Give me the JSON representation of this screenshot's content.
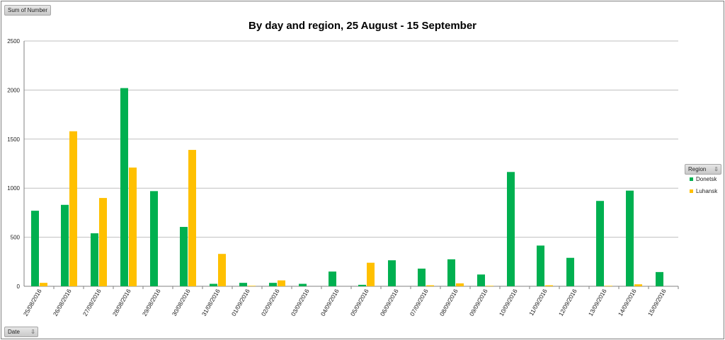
{
  "buttons": {
    "values_field": "Sum of Number",
    "axis_field": "Date",
    "legend_field": "Region",
    "filter_icon": "filter-dropdown-icon"
  },
  "colors": {
    "Donetsk": "#00b050",
    "Luhansk": "#ffc000",
    "grid": "#bfbfbf",
    "axis": "#808080"
  },
  "chart_data": {
    "type": "bar",
    "title": "By day and region, 25 August - 15 September",
    "xlabel": "",
    "ylabel": "",
    "ylim": [
      0,
      2500
    ],
    "yticks": [
      0,
      500,
      1000,
      1500,
      2000,
      2500
    ],
    "grid": true,
    "legend_position": "right",
    "categories": [
      "25/08/2016",
      "26/08/2016",
      "27/08/2016",
      "28/08/2016",
      "29/08/2016",
      "30/08/2016",
      "31/08/2016",
      "01/09/2016",
      "02/09/2016",
      "03/09/2016",
      "04/09/2016",
      "05/09/2016",
      "06/09/2016",
      "07/09/2016",
      "08/09/2016",
      "09/09/2016",
      "10/09/2016",
      "11/09/2016",
      "12/09/2016",
      "13/09/2016",
      "14/09/2016",
      "15/09/2016"
    ],
    "series": [
      {
        "name": "Donetsk",
        "values": [
          770,
          830,
          540,
          2020,
          970,
          605,
          25,
          35,
          35,
          25,
          150,
          15,
          265,
          180,
          275,
          120,
          1165,
          415,
          290,
          870,
          975,
          145
        ]
      },
      {
        "name": "Luhansk",
        "values": [
          35,
          1580,
          900,
          1210,
          null,
          1390,
          330,
          5,
          60,
          null,
          null,
          240,
          null,
          10,
          30,
          5,
          null,
          10,
          null,
          5,
          20,
          null
        ]
      }
    ]
  }
}
